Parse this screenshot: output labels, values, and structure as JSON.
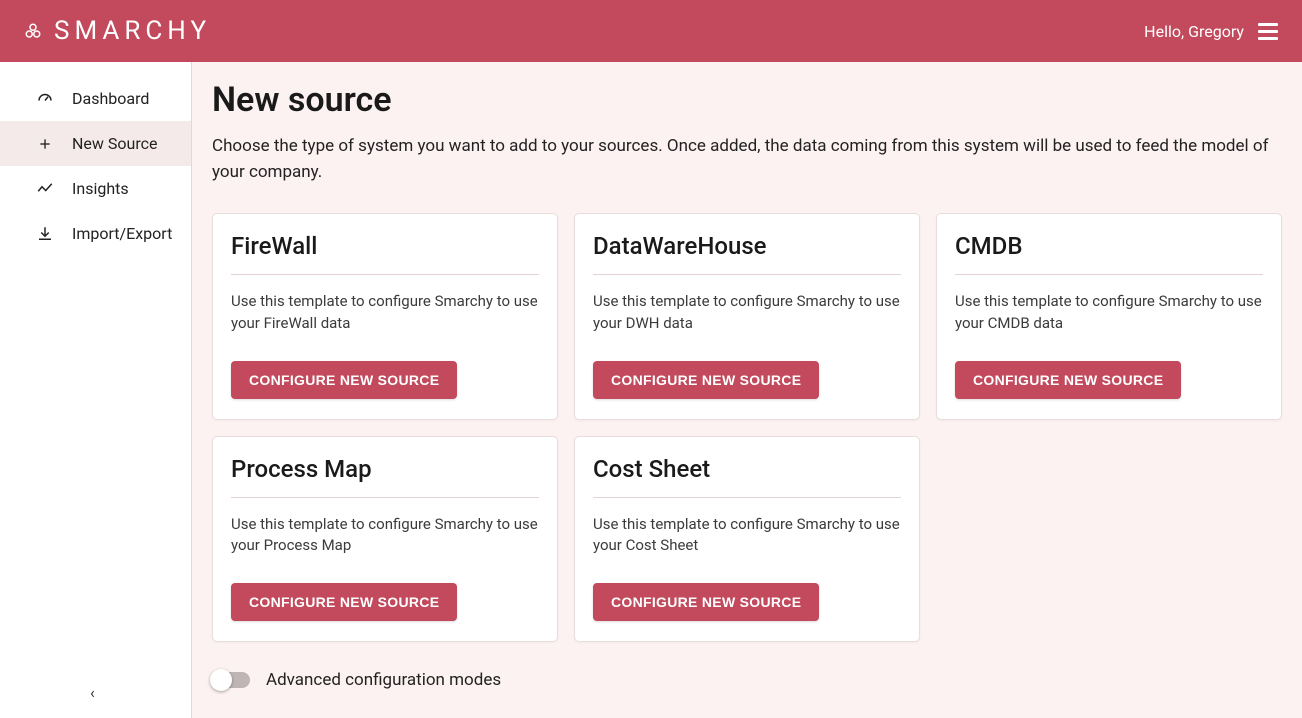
{
  "brand": {
    "name": "SMARCHY"
  },
  "header": {
    "greeting": "Hello, Gregory"
  },
  "sidebar": {
    "items": [
      {
        "label": "Dashboard",
        "icon": "dashboard",
        "active": false
      },
      {
        "label": "New Source",
        "icon": "plus",
        "active": true
      },
      {
        "label": "Insights",
        "icon": "insights",
        "active": false
      },
      {
        "label": "Import/Export",
        "icon": "import-export",
        "active": false
      }
    ]
  },
  "page": {
    "title": "New source",
    "description": "Choose the type of system you want to add to your sources. Once added, the data coming from this system will be used to feed the model of your company."
  },
  "cards": [
    {
      "title": "FireWall",
      "description": "Use this template to configure Smarchy to use your FireWall data",
      "button": "CONFIGURE NEW SOURCE"
    },
    {
      "title": "DataWareHouse",
      "description": "Use this template to configure Smarchy to use your DWH data",
      "button": "CONFIGURE NEW SOURCE"
    },
    {
      "title": "CMDB",
      "description": "Use this template to configure Smarchy to use your CMDB data",
      "button": "CONFIGURE NEW SOURCE"
    },
    {
      "title": "Process Map",
      "description": "Use this template to configure Smarchy to use your Process Map",
      "button": "CONFIGURE NEW SOURCE"
    },
    {
      "title": "Cost Sheet",
      "description": "Use this template to configure Smarchy to use your Cost Sheet",
      "button": "CONFIGURE NEW SOURCE"
    }
  ],
  "advanced": {
    "label": "Advanced configuration modes",
    "on": false
  },
  "colors": {
    "brand": "#c24a5c",
    "page_bg": "#fdf2f2",
    "card_bg": "#ffffff",
    "divider": "#e2d2d2",
    "text": "#1a1a1a"
  }
}
